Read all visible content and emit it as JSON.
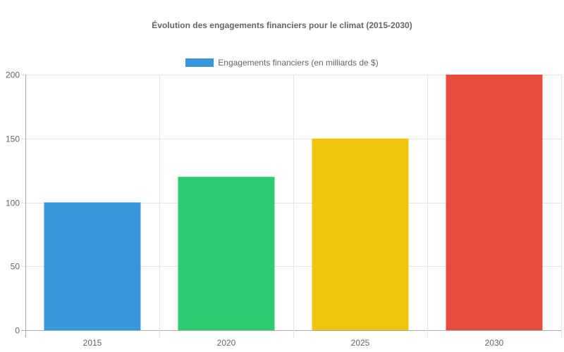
{
  "chart_data": {
    "type": "bar",
    "title": "Évolution des engagements financiers pour le climat (2015-2030)",
    "categories": [
      "2015",
      "2020",
      "2025",
      "2030"
    ],
    "series": [
      {
        "name": "Engagements financiers (en milliards de $)",
        "values": [
          100,
          120,
          150,
          200
        ],
        "colors": [
          "#3498db",
          "#2ecc71",
          "#f1c40f",
          "#e74c3c"
        ]
      }
    ],
    "xlabel": "",
    "ylabel": "",
    "ylim": [
      0,
      200
    ],
    "yticks": [
      0,
      50,
      100,
      150,
      200
    ],
    "grid": true,
    "legend_position": "top"
  },
  "legend": {
    "label": "Engagements financiers (en milliards de $)",
    "color": "#3498db"
  }
}
